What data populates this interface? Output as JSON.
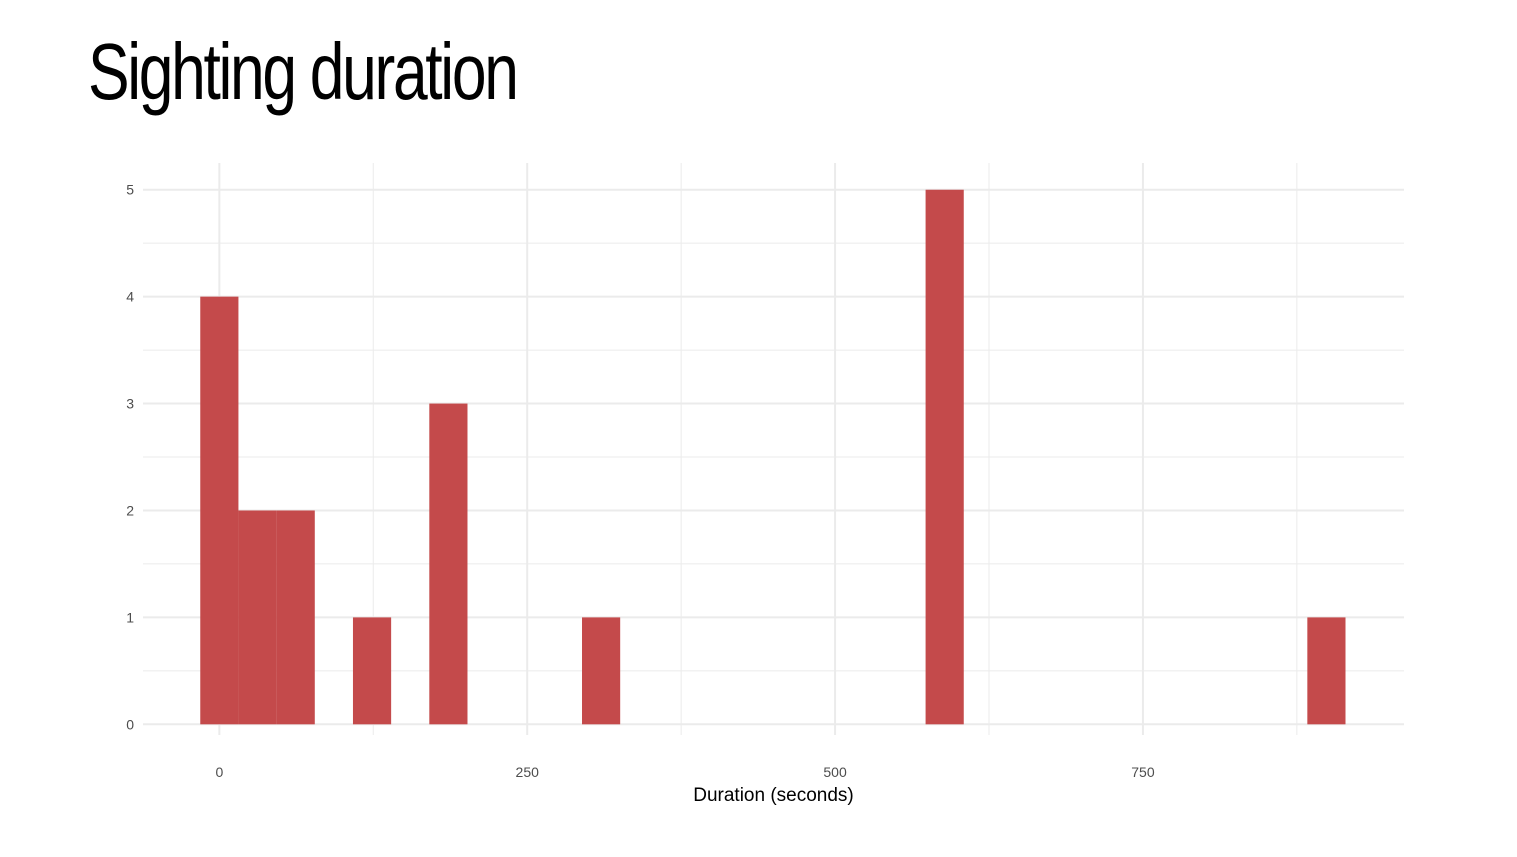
{
  "title": "Sighting duration",
  "chart_data": {
    "type": "bar",
    "title": "Sighting duration",
    "xlabel": "Duration (seconds)",
    "ylabel": "",
    "xlim": [
      -62,
      962
    ],
    "ylim": [
      -0.1,
      5.25
    ],
    "x_ticks": [
      0,
      250,
      500,
      750
    ],
    "y_ticks": [
      0,
      1,
      2,
      3,
      4,
      5
    ],
    "x_minor_ticks": [
      125,
      375,
      625,
      875
    ],
    "y_minor_ticks": [
      0.5,
      1.5,
      2.5,
      3.5,
      4.5
    ],
    "bin_width": 31,
    "bins": [
      {
        "start": -15.5,
        "end": 15.5,
        "count": 4
      },
      {
        "start": 15.5,
        "end": 46.5,
        "count": 2
      },
      {
        "start": 46.5,
        "end": 77.5,
        "count": 2
      },
      {
        "start": 108.5,
        "end": 139.5,
        "count": 1
      },
      {
        "start": 170.5,
        "end": 201.5,
        "count": 3
      },
      {
        "start": 294.5,
        "end": 325.5,
        "count": 1
      },
      {
        "start": 573.5,
        "end": 604.5,
        "count": 5
      },
      {
        "start": 883.5,
        "end": 914.5,
        "count": 1
      }
    ],
    "grid": true,
    "bar_color": "#c44a4b",
    "grid_color": "#ebebeb"
  }
}
